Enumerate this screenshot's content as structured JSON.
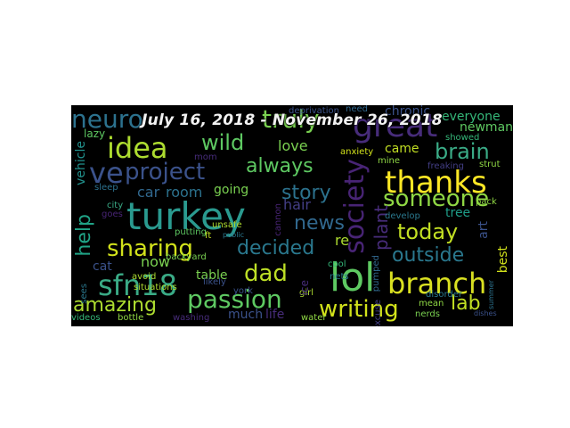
{
  "title": "July 16, 2018 - November 26, 2018",
  "colors": {
    "background": "#000000",
    "yellow": "#d9e021",
    "green": "#5ec962",
    "teal": "#21918c",
    "blue": "#3b528b",
    "purple": "#472c7a"
  },
  "words": [
    {
      "text": "turkey",
      "color": "#2a9a8f"
    },
    {
      "text": "lol",
      "color": "#5ec962"
    },
    {
      "text": "branch",
      "color": "#d9e021"
    },
    {
      "text": "thanks",
      "color": "#fde725"
    },
    {
      "text": "sfn18",
      "color": "#3aab86"
    },
    {
      "text": "great",
      "color": "#472c7a"
    },
    {
      "text": "truly",
      "color": "#7ad151"
    },
    {
      "text": "neuro",
      "color": "#2c728e"
    },
    {
      "text": "idea",
      "color": "#addc30"
    },
    {
      "text": "project",
      "color": "#3b528b"
    },
    {
      "text": "passion",
      "color": "#5ec962"
    },
    {
      "text": "society",
      "color": "#482475"
    },
    {
      "text": "amazing",
      "color": "#addc30"
    },
    {
      "text": "help",
      "color": "#20a386"
    },
    {
      "text": "sharing",
      "color": "#d2e21b"
    },
    {
      "text": "dad",
      "color": "#bddf26"
    },
    {
      "text": "writing",
      "color": "#d2e21b"
    },
    {
      "text": "outside",
      "color": "#2a788e"
    },
    {
      "text": "today",
      "color": "#c2df23"
    },
    {
      "text": "someone",
      "color": "#8fd744"
    },
    {
      "text": "brain",
      "color": "#3aab86"
    },
    {
      "text": "decided",
      "color": "#2a788e"
    },
    {
      "text": "news",
      "color": "#31688e"
    },
    {
      "text": "story",
      "color": "#2c728e"
    },
    {
      "text": "always",
      "color": "#5ec962"
    },
    {
      "text": "wild",
      "color": "#5ec962"
    },
    {
      "text": "ve",
      "color": "#3b528b"
    },
    {
      "text": "lab",
      "color": "#c2df23"
    },
    {
      "text": "everyone",
      "color": "#35b779"
    },
    {
      "text": "newman",
      "color": "#5ec962"
    },
    {
      "text": "vehicle",
      "color": "#21918c"
    },
    {
      "text": "love",
      "color": "#7ad151"
    },
    {
      "text": "came",
      "color": "#c2df23"
    },
    {
      "text": "tree",
      "color": "#1f9e89"
    },
    {
      "text": "best",
      "color": "#d2e21b"
    },
    {
      "text": "art",
      "color": "#3b528b"
    },
    {
      "text": "room",
      "color": "#2c728e"
    },
    {
      "text": "car",
      "color": "#31688e"
    },
    {
      "text": "going",
      "color": "#7ad151"
    },
    {
      "text": "hair",
      "color": "#433e85"
    },
    {
      "text": "now",
      "color": "#7ad151"
    },
    {
      "text": "cat",
      "color": "#3b528b"
    },
    {
      "text": "table",
      "color": "#7ad151"
    },
    {
      "text": "much",
      "color": "#3b528b"
    },
    {
      "text": "life",
      "color": "#472c7a"
    },
    {
      "text": "water",
      "color": "#8fd744"
    },
    {
      "text": "re",
      "color": "#addc30"
    },
    {
      "text": "plant",
      "color": "#472c7a"
    },
    {
      "text": "chronic",
      "color": "#3b528b"
    },
    {
      "text": "deprivation",
      "color": "#3b528b"
    },
    {
      "text": "need",
      "color": "#31688e"
    },
    {
      "text": "anxiety",
      "color": "#d2e21b"
    },
    {
      "text": "mine",
      "color": "#8fd744"
    },
    {
      "text": "freaking",
      "color": "#433e85"
    },
    {
      "text": "showed",
      "color": "#35b779"
    },
    {
      "text": "strut",
      "color": "#8fd744"
    },
    {
      "text": "pack",
      "color": "#8fd744"
    },
    {
      "text": "develop",
      "color": "#2a788e"
    },
    {
      "text": "pumped",
      "color": "#31688e"
    },
    {
      "text": "disorder",
      "color": "#2a788e"
    },
    {
      "text": "mean",
      "color": "#8fd744"
    },
    {
      "text": "nerds",
      "color": "#7ad151"
    },
    {
      "text": "excuse",
      "color": "#433e85"
    },
    {
      "text": "sleep",
      "color": "#2c728e"
    },
    {
      "text": "city",
      "color": "#3aab86"
    },
    {
      "text": "goes",
      "color": "#482475"
    },
    {
      "text": "lazy",
      "color": "#5ec962"
    },
    {
      "text": "situations",
      "color": "#addc30"
    },
    {
      "text": "putting",
      "color": "#5ec962"
    },
    {
      "text": "avoid",
      "color": "#addc30"
    },
    {
      "text": "backyard",
      "color": "#7ad151"
    },
    {
      "text": "likely",
      "color": "#3b528b"
    },
    {
      "text": "ft",
      "color": "#c2df23"
    },
    {
      "text": "girl",
      "color": "#addc30"
    },
    {
      "text": "cool",
      "color": "#35b779"
    },
    {
      "text": "nets",
      "color": "#2a788e"
    },
    {
      "text": "ice",
      "color": "#472c7a"
    },
    {
      "text": "cannon",
      "color": "#482475"
    },
    {
      "text": "bottle",
      "color": "#8fd744"
    },
    {
      "text": "washing",
      "color": "#472c7a"
    },
    {
      "text": "videos",
      "color": "#35b779"
    },
    {
      "text": "sees",
      "color": "#2a788e"
    },
    {
      "text": "mom",
      "color": "#472c7a"
    },
    {
      "text": "unsafe",
      "color": "#addc30"
    },
    {
      "text": "york",
      "color": "#3b528b"
    },
    {
      "text": "public",
      "color": "#2a788e"
    },
    {
      "text": "dishes",
      "color": "#3b528b"
    },
    {
      "text": "summer",
      "color": "#2c728e"
    }
  ]
}
